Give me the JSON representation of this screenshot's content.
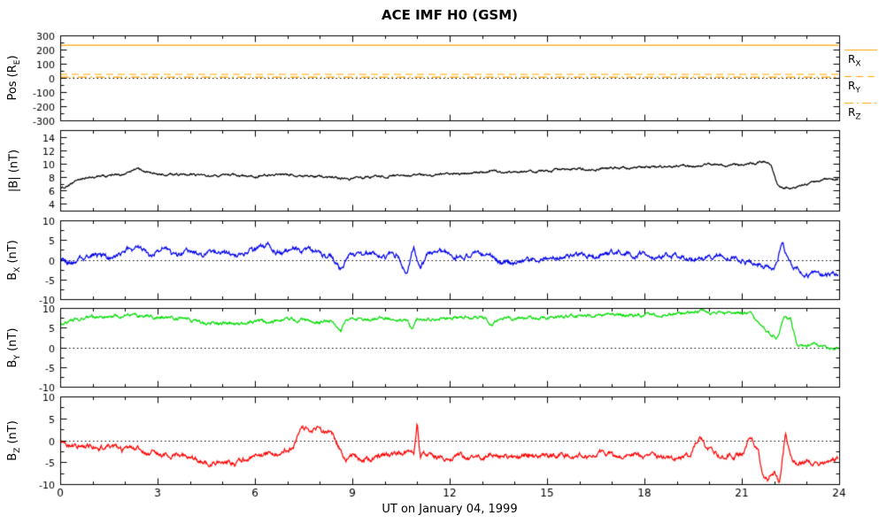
{
  "chart_data": {
    "type": "line",
    "title": "ACE IMF H0 (GSM)",
    "xlabel": "UT on January 04, 1999",
    "x_range": [
      0,
      24
    ],
    "x_ticks": [
      0,
      3,
      6,
      9,
      12,
      15,
      18,
      21,
      24
    ],
    "grid": false,
    "legend_position": "right-of-top-panel",
    "panels": [
      {
        "ylabel": "Pos (R_E)",
        "ylim": [
          -300,
          300
        ],
        "yticks": [
          -300,
          -200,
          -100,
          0,
          100,
          200,
          300
        ],
        "zero_line": true,
        "legend": true,
        "series": [
          {
            "name": "R_X",
            "color": "#ffa500",
            "style": "solid",
            "value": 230
          },
          {
            "name": "R_Y",
            "color": "#ffa500",
            "style": "dashed",
            "value": 25
          },
          {
            "name": "R_Z",
            "color": "#ffa500",
            "style": "dashdot",
            "value": 5
          }
        ]
      },
      {
        "ylabel": "|B| (nT)",
        "ylim": [
          3,
          15
        ],
        "yticks": [
          4,
          6,
          8,
          10,
          12,
          14
        ],
        "zero_line": false,
        "legend": false,
        "series": [
          {
            "name": "|B|",
            "color": "#000000",
            "style": "solid",
            "jitter": 0.22,
            "x": [
              0,
              0.3,
              0.7,
              1,
              1.5,
              2,
              2.3,
              2.6,
              3,
              3.5,
              4,
              4.5,
              5,
              5.5,
              6,
              6.5,
              7,
              7.5,
              8,
              8.5,
              9,
              9.5,
              10,
              10.5,
              11,
              11.5,
              12,
              12.5,
              13,
              13.3,
              13.6,
              14,
              14.5,
              15,
              15.5,
              16,
              16.5,
              17,
              17.5,
              18,
              18.5,
              19,
              19.5,
              20,
              20.5,
              21,
              21.4,
              21.7,
              21.9,
              22.1,
              22.3,
              22.6,
              23,
              23.4,
              23.7,
              24
            ],
            "y": [
              6.2,
              7.0,
              7.8,
              8.1,
              8.3,
              8.4,
              9.2,
              8.8,
              8.5,
              8.3,
              8.4,
              8.2,
              8.3,
              8.1,
              8.2,
              8.3,
              8.4,
              8.2,
              8.0,
              7.9,
              7.8,
              8.0,
              8.2,
              8.3,
              8.2,
              8.4,
              8.5,
              8.4,
              8.6,
              9.0,
              8.7,
              8.8,
              8.9,
              9.0,
              9.1,
              9.2,
              9.2,
              9.3,
              9.3,
              9.4,
              9.5,
              9.6,
              9.7,
              9.8,
              9.8,
              9.9,
              10.0,
              10.4,
              9.8,
              6.8,
              6.3,
              6.5,
              7.0,
              7.4,
              7.6,
              7.8
            ]
          }
        ]
      },
      {
        "ylabel": "B_X (nT)",
        "ylim": [
          -10,
          10
        ],
        "yticks": [
          -10,
          -5,
          0,
          5,
          10
        ],
        "zero_line": true,
        "legend": false,
        "series": [
          {
            "name": "B_X",
            "color": "#0000ee",
            "style": "solid",
            "jitter": 0.9,
            "x": [
              0,
              0.4,
              0.8,
              1.2,
              1.6,
              2,
              2.4,
              2.8,
              3.2,
              3.6,
              4,
              4.4,
              4.8,
              5.2,
              5.6,
              6,
              6.4,
              6.8,
              7.2,
              7.6,
              8,
              8.4,
              8.7,
              8.9,
              9.2,
              9.6,
              10,
              10.4,
              10.7,
              10.9,
              11.1,
              11.3,
              11.6,
              12,
              12.4,
              12.8,
              13.2,
              13.6,
              14,
              14.4,
              14.8,
              15.2,
              15.6,
              16,
              16.4,
              16.8,
              17.2,
              17.6,
              18,
              18.4,
              18.8,
              19.2,
              19.6,
              20,
              20.4,
              20.8,
              21.2,
              21.6,
              22,
              22.25,
              22.4,
              22.6,
              22.9,
              23.2,
              23.6,
              24
            ],
            "y": [
              0.3,
              -0.8,
              0.6,
              1.4,
              0.4,
              1.8,
              2.8,
              1.2,
              2.4,
              1.0,
              2.2,
              0.6,
              1.8,
              0.8,
              1.5,
              2.2,
              3.6,
              2.0,
              3.2,
              2.4,
              1.2,
              0.4,
              -2.6,
              1.4,
              1.8,
              1.2,
              0.6,
              1.4,
              -3.6,
              3.2,
              -2.2,
              1.0,
              1.6,
              1.8,
              0.8,
              1.4,
              0.6,
              -0.6,
              -1.2,
              -0.4,
              0.4,
              0.8,
              1.2,
              1.6,
              1.0,
              1.6,
              2.0,
              1.6,
              1.2,
              1.0,
              1.2,
              0.8,
              0.6,
              0.8,
              1.2,
              0.4,
              -0.4,
              -1.6,
              -2.2,
              4.6,
              1.0,
              -2.4,
              -3.0,
              -3.4,
              -3.6,
              -3.5
            ]
          }
        ]
      },
      {
        "ylabel": "B_Y (nT)",
        "ylim": [
          -10,
          10
        ],
        "yticks": [
          -10,
          -5,
          0,
          5,
          10
        ],
        "zero_line": true,
        "legend": false,
        "series": [
          {
            "name": "B_Y",
            "color": "#00dd00",
            "style": "solid",
            "jitter": 0.55,
            "x": [
              0,
              0.4,
              0.8,
              1.2,
              1.6,
              2,
              2.4,
              2.8,
              3.2,
              3.6,
              4,
              4.4,
              4.8,
              5.2,
              5.6,
              6,
              6.4,
              6.8,
              7.2,
              7.6,
              8,
              8.4,
              8.65,
              8.8,
              9.2,
              9.6,
              10,
              10.4,
              10.7,
              10.85,
              11,
              11.4,
              11.8,
              12.2,
              12.6,
              13,
              13.3,
              13.5,
              13.8,
              14.2,
              14.6,
              15,
              15.4,
              15.8,
              16.2,
              16.6,
              17,
              17.4,
              17.8,
              18.2,
              18.6,
              19,
              19.4,
              19.8,
              20.2,
              20.6,
              21,
              21.3,
              21.6,
              21.9,
              22.1,
              22.3,
              22.5,
              22.7,
              22.9,
              23.2,
              23.5,
              23.8,
              24
            ],
            "y": [
              6.2,
              6.9,
              7.4,
              7.7,
              8.0,
              8.2,
              7.9,
              7.6,
              7.8,
              7.5,
              7.0,
              6.2,
              6.0,
              6.3,
              5.9,
              6.7,
              6.4,
              6.9,
              7.1,
              6.8,
              6.6,
              6.8,
              4.0,
              6.9,
              7.1,
              7.0,
              7.2,
              7.1,
              6.8,
              4.6,
              7.0,
              7.4,
              7.2,
              7.5,
              7.6,
              7.8,
              5.6,
              7.4,
              7.3,
              7.2,
              7.4,
              7.5,
              7.6,
              7.7,
              7.8,
              7.9,
              8.0,
              8.1,
              8.2,
              8.3,
              8.4,
              8.6,
              8.7,
              8.8,
              8.9,
              9.0,
              8.8,
              8.6,
              5.2,
              3.6,
              2.8,
              7.6,
              7.2,
              0.8,
              0.4,
              1.0,
              0.2,
              -0.3,
              -0.5
            ]
          }
        ]
      },
      {
        "ylabel": "B_Z (nT)",
        "ylim": [
          -10,
          10
        ],
        "yticks": [
          -10,
          -5,
          0,
          5,
          10
        ],
        "zero_line": true,
        "legend": false,
        "series": [
          {
            "name": "B_Z",
            "color": "#ff0000",
            "style": "solid",
            "jitter": 0.8,
            "x": [
              0,
              0.3,
              0.6,
              0.9,
              1.2,
              1.5,
              1.8,
              2.1,
              2.4,
              2.7,
              3,
              3.3,
              3.6,
              3.9,
              4.2,
              4.5,
              4.8,
              5.1,
              5.4,
              5.7,
              6,
              6.3,
              6.6,
              6.9,
              7.2,
              7.45,
              7.7,
              7.9,
              8.1,
              8.35,
              8.6,
              8.8,
              9,
              9.4,
              9.8,
              10.2,
              10.6,
              10.9,
              11,
              11.1,
              11.4,
              11.8,
              12.2,
              12.6,
              13,
              13.4,
              13.8,
              14.2,
              14.6,
              15,
              15.4,
              15.8,
              16.2,
              16.6,
              17,
              17.4,
              17.8,
              18.2,
              18.6,
              19,
              19.4,
              19.7,
              19.9,
              20.2,
              20.6,
              21,
              21.25,
              21.5,
              21.65,
              21.8,
              22,
              22.15,
              22.35,
              22.5,
              22.7,
              23,
              23.3,
              23.6,
              24
            ],
            "y": [
              -0.4,
              -1.8,
              -1.2,
              -0.8,
              -1.6,
              -1.0,
              -2.2,
              -2.6,
              -1.8,
              -2.4,
              -3.0,
              -3.4,
              -3.0,
              -3.8,
              -4.4,
              -5.4,
              -5.0,
              -4.6,
              -5.2,
              -4.4,
              -4.0,
              -3.6,
              -3.2,
              -2.6,
              -1.0,
              3.8,
              1.6,
              2.8,
              1.2,
              2.4,
              -1.6,
              -4.6,
              -3.4,
              -4.0,
              -3.6,
              -3.2,
              -3.0,
              -3.2,
              4.6,
              -3.6,
              -3.4,
              -3.8,
              -3.2,
              -4.2,
              -3.6,
              -2.8,
              -4.0,
              -3.8,
              -3.4,
              -3.6,
              -4.0,
              -3.2,
              -3.4,
              -3.0,
              -3.3,
              -3.6,
              -3.4,
              -3.8,
              -4.0,
              -4.2,
              -3.6,
              1.2,
              -1.4,
              -2.8,
              -3.2,
              -3.6,
              0.4,
              -2.0,
              -8.0,
              -9.4,
              -7.6,
              -9.6,
              1.6,
              -3.2,
              -5.0,
              -4.4,
              -5.6,
              -4.6,
              -4.2
            ]
          }
        ]
      }
    ]
  }
}
